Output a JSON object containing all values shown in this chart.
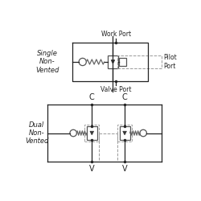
{
  "bg_color": "#ffffff",
  "line_color": "#222222",
  "dashed_color": "#999999",
  "title1": "Single\nNon-\nVented",
  "title2": "Dual\nNon-\nVented",
  "label_work_port": "Work Port",
  "label_valve_port": "Valve Port",
  "label_pilot_port": "Pilot\nPort",
  "label_c1": "C",
  "label_c2": "C",
  "label_v1": "V",
  "label_v2": "V",
  "fontsize_label": 6.0,
  "fontsize_port": 5.5
}
